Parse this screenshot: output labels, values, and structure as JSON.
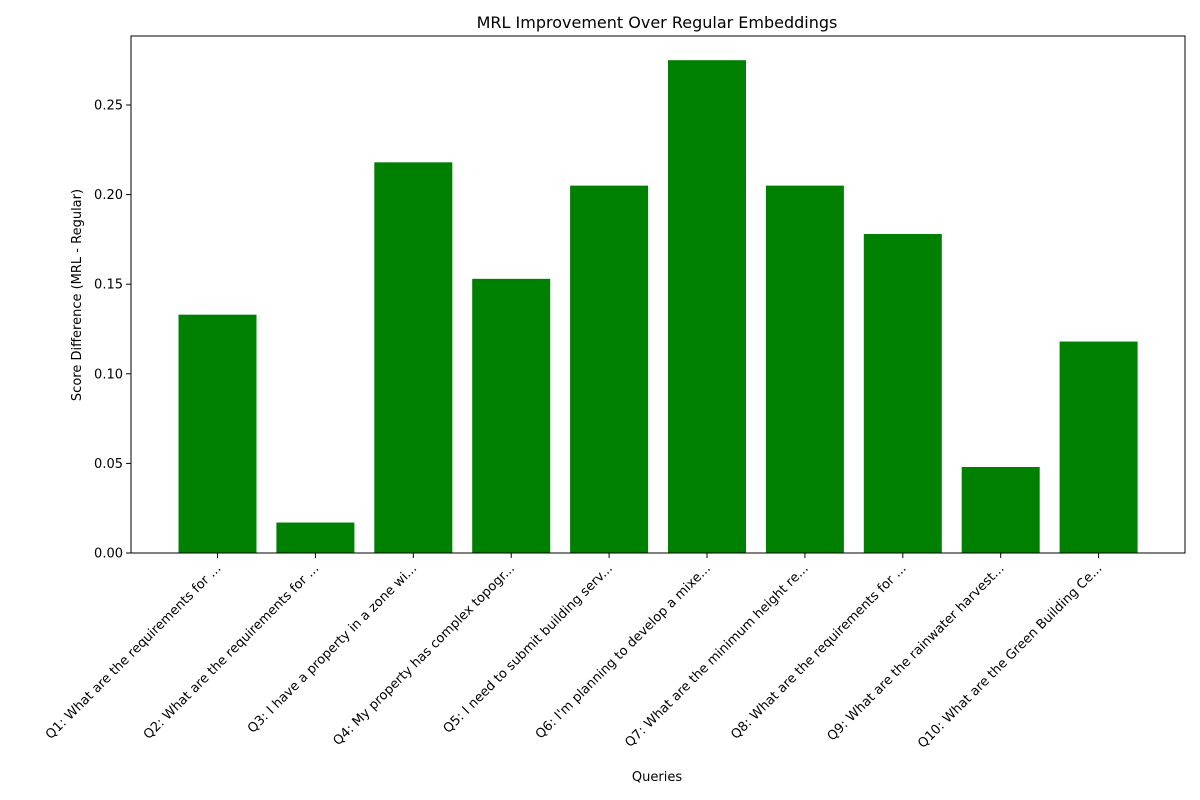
{
  "chart_data": {
    "type": "bar",
    "title": "MRL Improvement Over Regular Embeddings",
    "xlabel": "Queries",
    "ylabel": "Score Difference (MRL - Regular)",
    "categories": [
      "Q1: What are the requirements for ...",
      "Q2: What are the requirements for ...",
      "Q3: I have a property in a zone wi...",
      "Q4: My property has complex topogr...",
      "Q5: I need to submit building serv...",
      "Q6: I'm planning to develop a mixe...",
      "Q7: What are the minimum height re...",
      "Q8: What are the requirements for ...",
      "Q9: What are the rainwater harvest...",
      "Q10: What are the Green Building Ce..."
    ],
    "values": [
      0.133,
      0.017,
      0.218,
      0.153,
      0.205,
      0.275,
      0.205,
      0.178,
      0.048,
      0.118
    ],
    "ylim": [
      0,
      0.2885
    ],
    "yticks": [
      0.0,
      0.05,
      0.1,
      0.15,
      0.2,
      0.25
    ],
    "ytick_labels": [
      "0.00",
      "0.05",
      "0.10",
      "0.15",
      "0.20",
      "0.25"
    ],
    "bar_color": "#008000",
    "grid": false,
    "legend": "none"
  }
}
